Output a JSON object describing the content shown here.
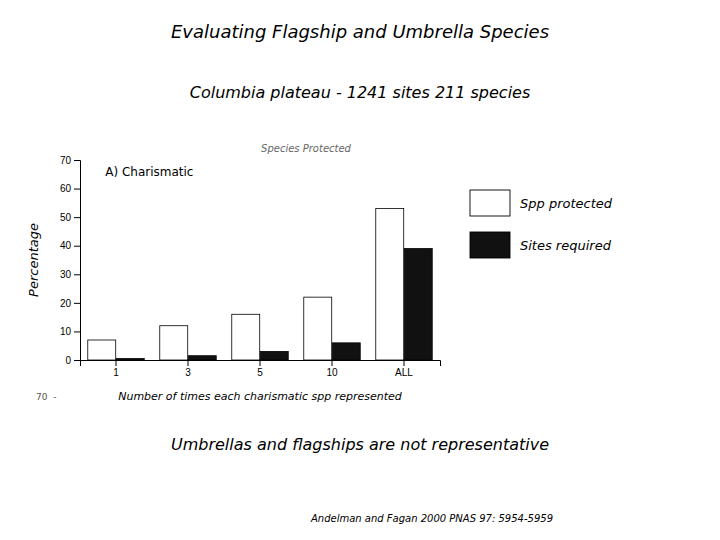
{
  "chart_data": {
    "type": "bar",
    "title": "Evaluating Flagship and Umbrella Species",
    "subtitle": "Columbia plateau - 1241 sites   211 species",
    "xlabel": "Number of times each charismatic spp represented",
    "ylabel": "Percentage",
    "annotations": [
      "A) Charismatic",
      "Species Protected",
      "70  -",
      "Umbrellas and flagships are not representative",
      "Andelman and Fagan 2000 PNAS 97: 5954-5959"
    ],
    "categories": [
      "1",
      "3",
      "5",
      "10",
      "ALL"
    ],
    "series": [
      {
        "name": "Spp protected",
        "color": "#ffffff",
        "values": [
          7,
          12,
          16,
          22,
          53
        ]
      },
      {
        "name": "Sites required",
        "color": "#111111",
        "values": [
          0.5,
          1.5,
          3,
          6,
          39
        ]
      }
    ],
    "ylim": [
      0,
      70
    ],
    "yticks": [
      0,
      10,
      20,
      30,
      40,
      50,
      60,
      70
    ],
    "legend": "right",
    "grid": false
  }
}
